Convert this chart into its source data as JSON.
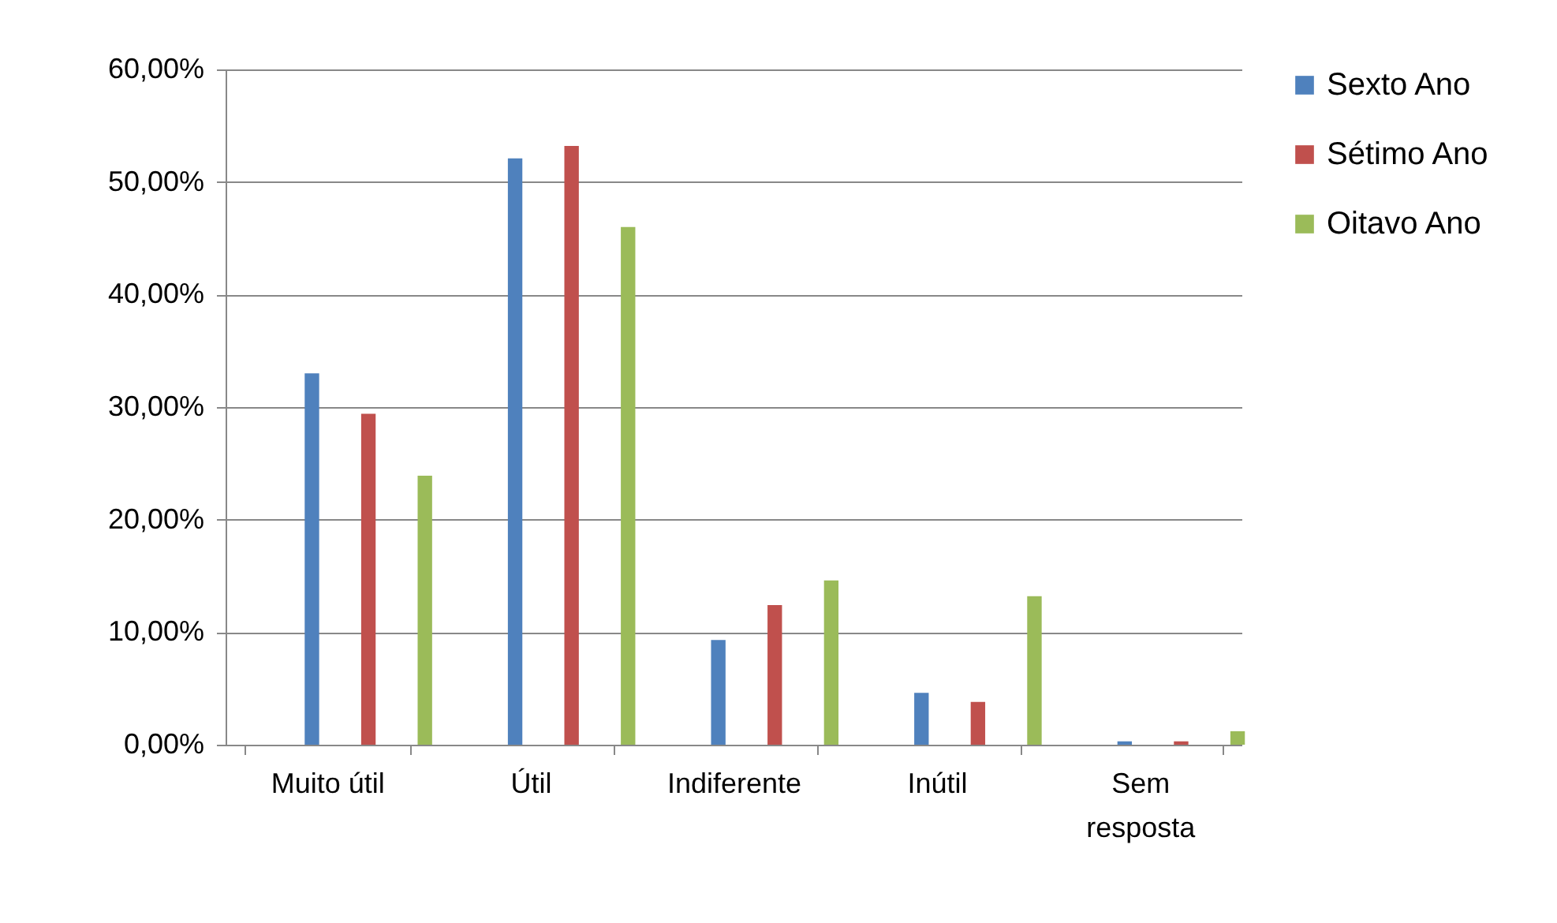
{
  "chart_data": {
    "type": "bar",
    "categories": [
      "Muito útil",
      "Útil",
      "Indiferente",
      "Inútil",
      "Sem resposta"
    ],
    "series": [
      {
        "name": "Sexto Ano",
        "color": "#4f81bd",
        "values": [
          33.0,
          52.1,
          9.3,
          4.6,
          0.3
        ]
      },
      {
        "name": "Sétimo Ano",
        "color": "#c0504d",
        "values": [
          29.4,
          53.2,
          12.4,
          3.8,
          0.3
        ]
      },
      {
        "name": "Oitavo Ano",
        "color": "#9bbb59",
        "values": [
          23.9,
          46.0,
          14.6,
          13.2,
          1.2
        ]
      }
    ],
    "ylim": [
      0,
      60
    ],
    "yticks": [
      {
        "value": 0,
        "label": "0,00%"
      },
      {
        "value": 10,
        "label": "10,00%"
      },
      {
        "value": 20,
        "label": "20,00%"
      },
      {
        "value": 30,
        "label": "30,00%"
      },
      {
        "value": 40,
        "label": "40,00%"
      },
      {
        "value": 50,
        "label": "50,00%"
      },
      {
        "value": 60,
        "label": "60,00%"
      }
    ],
    "grid": "y",
    "legend": "right"
  }
}
